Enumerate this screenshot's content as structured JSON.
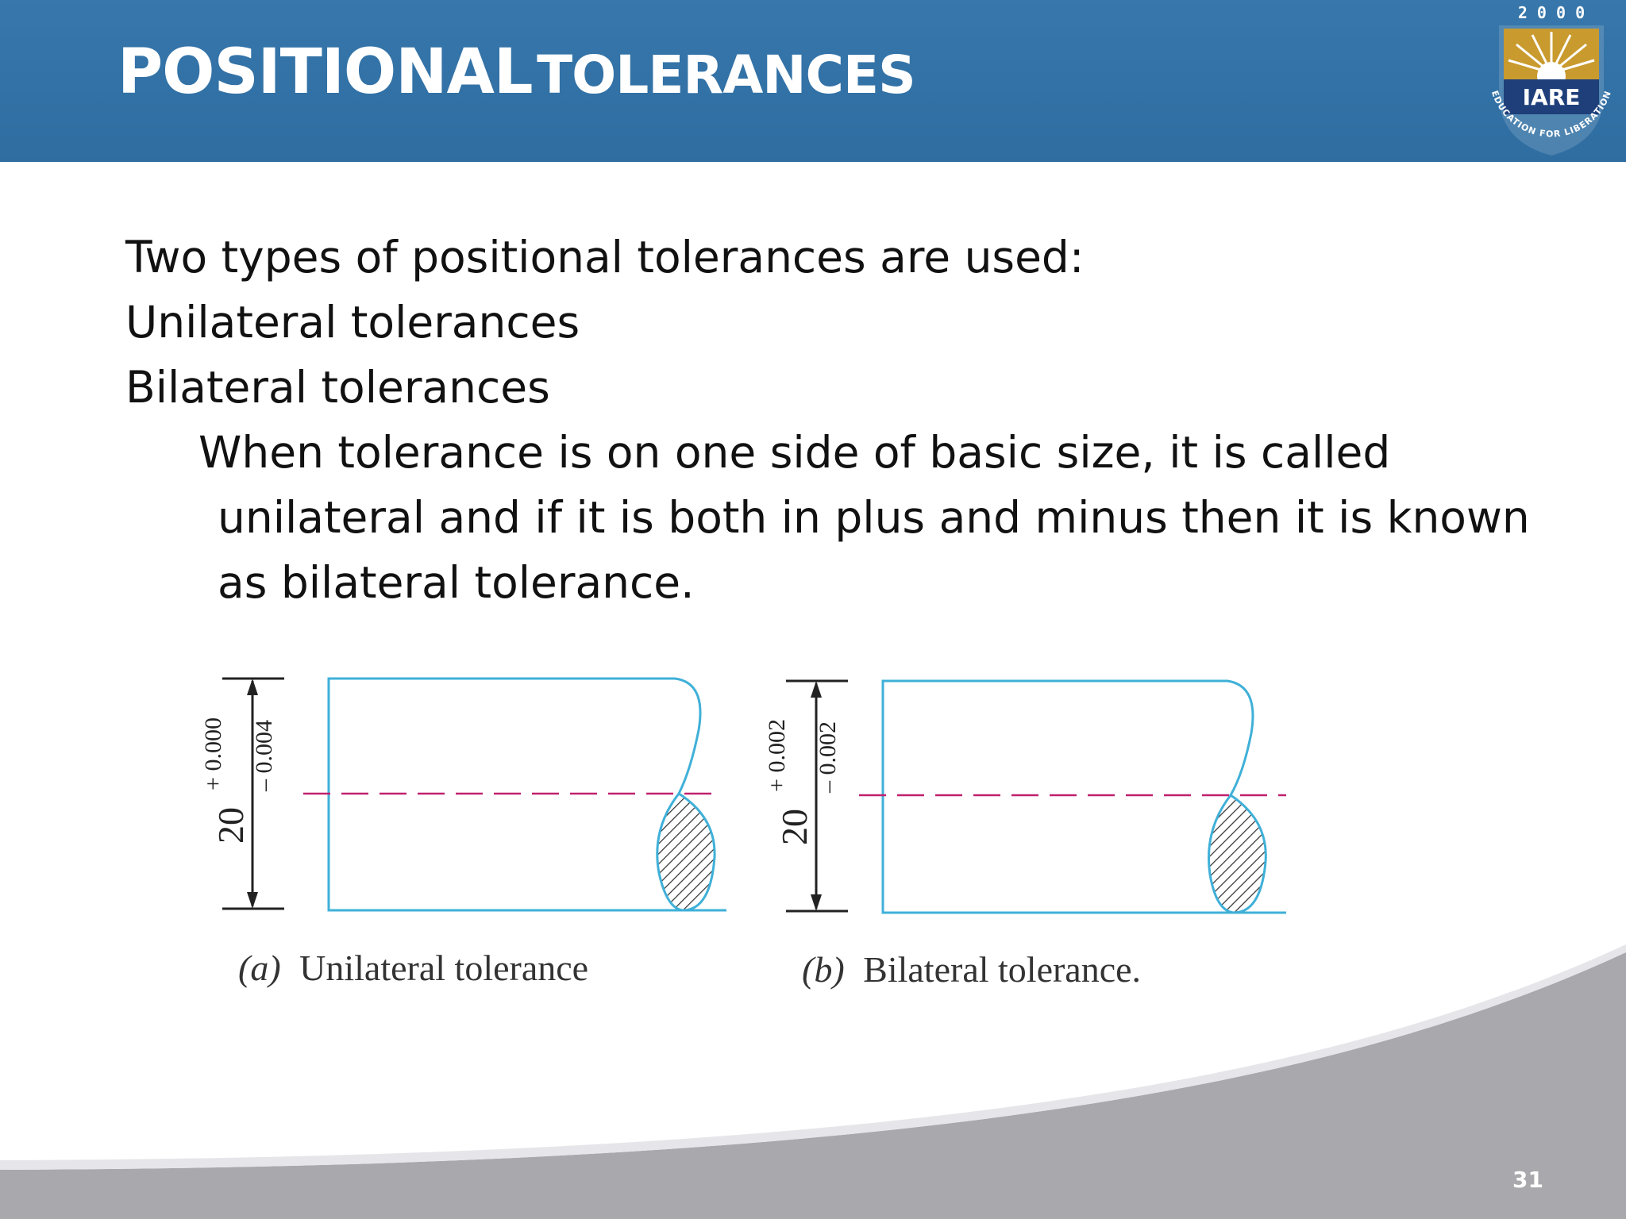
{
  "slide": {
    "title_part1": "POSITIONAL",
    "title_part2": "TOLERANCES",
    "page_number": "31"
  },
  "logo": {
    "year": "2 0 0 0",
    "name": "IARE",
    "tagline": "EDUCATION FOR LIBERATION",
    "colors": {
      "gold": "#c99a2e",
      "navy": "#1e3f7a"
    }
  },
  "body": {
    "lines": [
      "Two types of positional tolerances are used:",
      "Unilateral tolerances",
      "Bilateral tolerances",
      "When tolerance is on one side of basic size, it is called",
      "unilateral and if it is both in plus and minus then it is known",
      "as bilateral tolerance."
    ]
  },
  "figure": {
    "a": {
      "caption_prefix": "(a)",
      "caption": "Unilateral tolerance",
      "dim_basic": "20",
      "dim_upper": "+ 0.000",
      "dim_lower": "– 0.004"
    },
    "b": {
      "caption_prefix": "(b)",
      "caption": "Bilateral tolerance.",
      "dim_basic": "20",
      "dim_upper": "+ 0.002",
      "dim_lower": "– 0.002"
    },
    "colors": {
      "outline": "#3fb0d8",
      "centerline": "#c0206e",
      "dims": "#222222"
    }
  },
  "theme": {
    "header_blue": "#3474a8",
    "footer_gray": "#a8a8ad"
  }
}
